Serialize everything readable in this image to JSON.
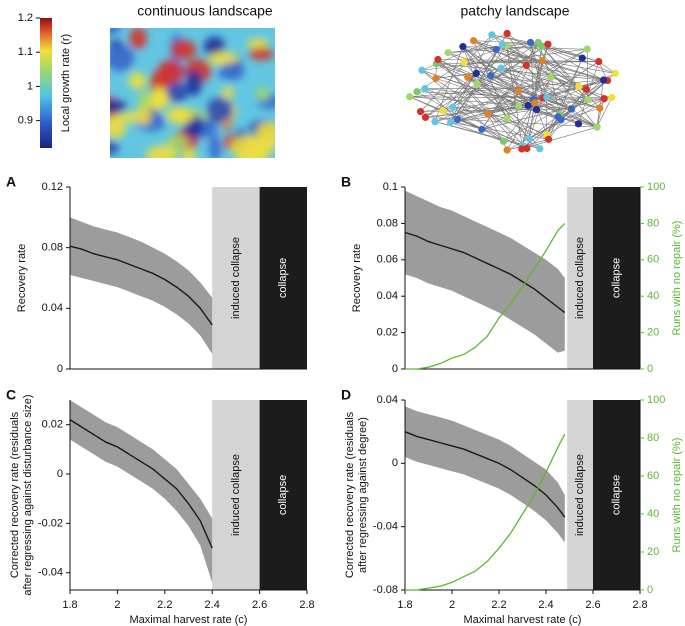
{
  "landscapes": [
    "continuous landscape",
    "patchy landscape"
  ],
  "colorbar": {
    "label": "Local growth rate (r)",
    "lim": [
      0.82,
      1.2
    ],
    "ticks": [
      0.9,
      1,
      1.1,
      1.2
    ]
  },
  "chart_data": [
    {
      "type": "line",
      "letter": "A",
      "ylabel": "Recovery rate",
      "xlim": [
        1.8,
        2.8
      ],
      "ylim": [
        0,
        0.12
      ],
      "yticks": [
        0,
        0.04,
        0.08,
        0.12
      ],
      "x": [
        1.8,
        1.85,
        1.9,
        1.95,
        2.0,
        2.05,
        2.1,
        2.15,
        2.2,
        2.25,
        2.3,
        2.35,
        2.4
      ],
      "mean": [
        0.081,
        0.079,
        0.076,
        0.074,
        0.072,
        0.069,
        0.066,
        0.063,
        0.059,
        0.054,
        0.048,
        0.04,
        0.029
      ],
      "high": [
        0.1,
        0.097,
        0.094,
        0.092,
        0.09,
        0.087,
        0.084,
        0.08,
        0.076,
        0.071,
        0.065,
        0.057,
        0.047
      ],
      "low": [
        0.062,
        0.06,
        0.058,
        0.056,
        0.054,
        0.051,
        0.048,
        0.045,
        0.041,
        0.036,
        0.03,
        0.022,
        0.01
      ],
      "band_color": "#9c9c9c",
      "line_color": "#1a1a1a",
      "regions": [
        {
          "xlim": [
            2.4,
            2.6
          ],
          "label": "induced collapse",
          "color": "#d4d4d4",
          "text_color": "#111"
        },
        {
          "xlim": [
            2.6,
            2.8
          ],
          "label": "collapse",
          "color": "#1c1c1c",
          "text_color": "#fff"
        }
      ]
    },
    {
      "type": "line",
      "letter": "B",
      "ylabel": "Recovery rate",
      "xlim": [
        1.8,
        2.8
      ],
      "ylim": [
        0,
        0.1
      ],
      "yticks": [
        0,
        0.02,
        0.04,
        0.06,
        0.08,
        0.1
      ],
      "y2label": "Runs with no repair (%)",
      "y2lim": [
        0,
        100
      ],
      "y2ticks": [
        0,
        20,
        40,
        60,
        80,
        100
      ],
      "x": [
        1.8,
        1.85,
        1.9,
        1.95,
        2.0,
        2.05,
        2.1,
        2.15,
        2.2,
        2.25,
        2.3,
        2.35,
        2.4,
        2.45,
        2.48
      ],
      "mean": [
        0.075,
        0.073,
        0.07,
        0.068,
        0.066,
        0.064,
        0.061,
        0.058,
        0.055,
        0.052,
        0.048,
        0.044,
        0.039,
        0.034,
        0.031
      ],
      "high": [
        0.098,
        0.095,
        0.092,
        0.089,
        0.087,
        0.084,
        0.081,
        0.078,
        0.075,
        0.072,
        0.068,
        0.064,
        0.06,
        0.055,
        0.05
      ],
      "low": [
        0.052,
        0.05,
        0.047,
        0.045,
        0.043,
        0.04,
        0.037,
        0.034,
        0.031,
        0.027,
        0.023,
        0.019,
        0.014,
        0.009,
        0.01
      ],
      "band_color": "#9c9c9c",
      "line_color": "#1a1a1a",
      "series2": {
        "axis": "y2",
        "color": "#5cb830",
        "values": [
          0,
          0,
          1,
          3,
          6,
          8,
          12,
          18,
          28,
          36,
          45,
          55,
          65,
          76,
          80
        ]
      },
      "regions": [
        {
          "xlim": [
            2.49,
            2.6
          ],
          "label": "induced collapse",
          "color": "#d4d4d4",
          "text_color": "#111"
        },
        {
          "xlim": [
            2.6,
            2.8
          ],
          "label": "collapse",
          "color": "#1c1c1c",
          "text_color": "#fff"
        }
      ]
    },
    {
      "type": "line",
      "letter": "C",
      "ylabel": [
        "Corrected recovery rate (residuals",
        "after regressing against disturbance size)"
      ],
      "xlabel": "Maximal harvest rate (c)",
      "xlim": [
        1.8,
        2.8
      ],
      "xticks": [
        1.8,
        2,
        2.2,
        2.4,
        2.6,
        2.8
      ],
      "ylim": [
        -0.047,
        0.03
      ],
      "yticks": [
        -0.04,
        -0.02,
        0,
        0.02
      ],
      "x": [
        1.8,
        1.85,
        1.9,
        1.95,
        2.0,
        2.05,
        2.1,
        2.15,
        2.2,
        2.25,
        2.3,
        2.35,
        2.4
      ],
      "mean": [
        0.022,
        0.019,
        0.016,
        0.013,
        0.011,
        0.008,
        0.005,
        0.002,
        -0.002,
        -0.006,
        -0.012,
        -0.019,
        -0.03
      ],
      "high": [
        0.03,
        0.027,
        0.024,
        0.021,
        0.019,
        0.016,
        0.013,
        0.01,
        0.006,
        0.002,
        -0.004,
        -0.01,
        -0.018
      ],
      "low": [
        0.014,
        0.011,
        0.008,
        0.005,
        0.003,
        0.0,
        -0.003,
        -0.006,
        -0.01,
        -0.015,
        -0.021,
        -0.029,
        -0.044
      ],
      "band_color": "#9c9c9c",
      "line_color": "#1a1a1a",
      "regions": [
        {
          "xlim": [
            2.4,
            2.6
          ],
          "label": "induced collapse",
          "color": "#d4d4d4",
          "text_color": "#111"
        },
        {
          "xlim": [
            2.6,
            2.8
          ],
          "label": "collapse",
          "color": "#1c1c1c",
          "text_color": "#fff"
        }
      ]
    },
    {
      "type": "line",
      "letter": "D",
      "ylabel": [
        "Corrected recovery rate (residuals",
        "after regressing against degree)"
      ],
      "xlabel": "Maximal harvest rate (c)",
      "xlim": [
        1.8,
        2.8
      ],
      "xticks": [
        1.8,
        2,
        2.2,
        2.4,
        2.6,
        2.8
      ],
      "ylim": [
        -0.08,
        0.04
      ],
      "yticks": [
        -0.08,
        -0.04,
        0,
        0.04
      ],
      "y2label": "Runs with no repair (%)",
      "y2lim": [
        0,
        100
      ],
      "y2ticks": [
        0,
        20,
        40,
        60,
        80,
        100
      ],
      "x": [
        1.8,
        1.85,
        1.9,
        1.95,
        2.0,
        2.05,
        2.1,
        2.15,
        2.2,
        2.25,
        2.3,
        2.35,
        2.4,
        2.45,
        2.48
      ],
      "mean": [
        0.02,
        0.017,
        0.015,
        0.013,
        0.011,
        0.009,
        0.006,
        0.003,
        0.0,
        -0.004,
        -0.009,
        -0.014,
        -0.02,
        -0.028,
        -0.034
      ],
      "high": [
        0.036,
        0.033,
        0.031,
        0.029,
        0.027,
        0.024,
        0.021,
        0.018,
        0.015,
        0.011,
        0.006,
        0.001,
        -0.004,
        -0.012,
        -0.02
      ],
      "low": [
        0.004,
        0.001,
        -0.001,
        -0.003,
        -0.005,
        -0.007,
        -0.01,
        -0.013,
        -0.016,
        -0.02,
        -0.025,
        -0.03,
        -0.036,
        -0.044,
        -0.05
      ],
      "band_color": "#9c9c9c",
      "line_color": "#1a1a1a",
      "series2": {
        "axis": "y2",
        "color": "#5cb830",
        "values": [
          0,
          0,
          1,
          2,
          4,
          7,
          10,
          15,
          22,
          30,
          40,
          50,
          62,
          75,
          82
        ]
      },
      "regions": [
        {
          "xlim": [
            2.49,
            2.6
          ],
          "label": "induced collapse",
          "color": "#d4d4d4",
          "text_color": "#111"
        },
        {
          "xlim": [
            2.6,
            2.8
          ],
          "label": "collapse",
          "color": "#1c1c1c",
          "text_color": "#fff"
        }
      ]
    }
  ]
}
